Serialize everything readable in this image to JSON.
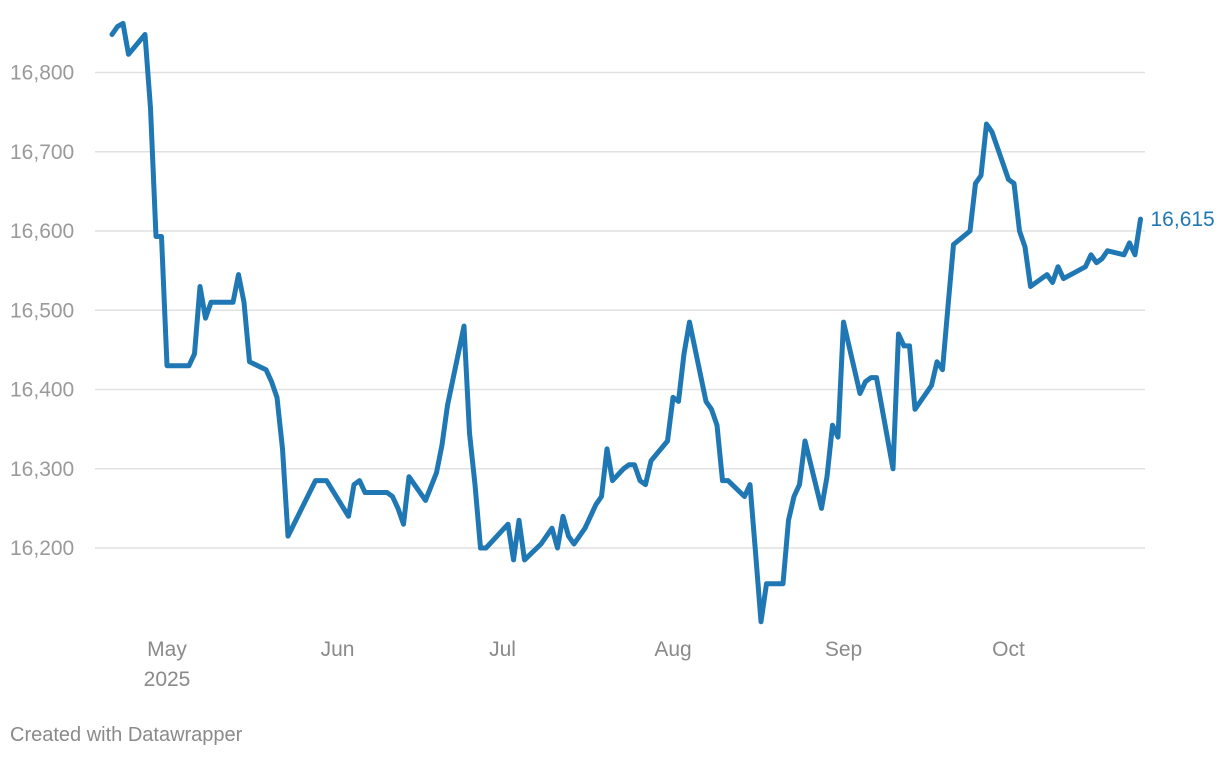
{
  "chart_data": {
    "type": "line",
    "color": "#1f77b4",
    "grid": true,
    "y_ticks": [
      16200,
      16300,
      16400,
      16500,
      16600,
      16700,
      16800
    ],
    "y_tick_labels": [
      "16,200",
      "16,300",
      "16,400",
      "16,500",
      "16,600",
      "16,700",
      "16,800"
    ],
    "x_ticks": [
      {
        "date": "2025-05-01",
        "label": "May",
        "sublabel": "2025"
      },
      {
        "date": "2025-06-01",
        "label": "Jun"
      },
      {
        "date": "2025-07-01",
        "label": "Jul"
      },
      {
        "date": "2025-08-01",
        "label": "Aug"
      },
      {
        "date": "2025-09-01",
        "label": "Sep"
      },
      {
        "date": "2025-10-01",
        "label": "Oct"
      }
    ],
    "end_label": "16,615",
    "series": [
      {
        "points": [
          [
            "2025-04-21",
            16848
          ],
          [
            "2025-04-22",
            16858
          ],
          [
            "2025-04-23",
            16862
          ],
          [
            "2025-04-24",
            16823
          ],
          [
            "2025-04-27",
            16848
          ],
          [
            "2025-04-28",
            16755
          ],
          [
            "2025-04-29",
            16593
          ],
          [
            "2025-04-30",
            16593
          ],
          [
            "2025-05-01",
            16430
          ],
          [
            "2025-05-05",
            16430
          ],
          [
            "2025-05-06",
            16445
          ],
          [
            "2025-05-07",
            16530
          ],
          [
            "2025-05-08",
            16490
          ],
          [
            "2025-05-09",
            16510
          ],
          [
            "2025-05-13",
            16510
          ],
          [
            "2025-05-14",
            16545
          ],
          [
            "2025-05-15",
            16510
          ],
          [
            "2025-05-16",
            16435
          ],
          [
            "2025-05-19",
            16425
          ],
          [
            "2025-05-20",
            16410
          ],
          [
            "2025-05-21",
            16390
          ],
          [
            "2025-05-22",
            16325
          ],
          [
            "2025-05-23",
            16215
          ],
          [
            "2025-05-28",
            16285
          ],
          [
            "2025-05-30",
            16285
          ],
          [
            "2025-06-03",
            16240
          ],
          [
            "2025-06-04",
            16280
          ],
          [
            "2025-06-05",
            16285
          ],
          [
            "2025-06-06",
            16270
          ],
          [
            "2025-06-10",
            16270
          ],
          [
            "2025-06-11",
            16265
          ],
          [
            "2025-06-12",
            16250
          ],
          [
            "2025-06-13",
            16230
          ],
          [
            "2025-06-14",
            16290
          ],
          [
            "2025-06-17",
            16260
          ],
          [
            "2025-06-19",
            16295
          ],
          [
            "2025-06-20",
            16330
          ],
          [
            "2025-06-21",
            16380
          ],
          [
            "2025-06-24",
            16480
          ],
          [
            "2025-06-25",
            16345
          ],
          [
            "2025-06-26",
            16280
          ],
          [
            "2025-06-27",
            16200
          ],
          [
            "2025-06-28",
            16200
          ],
          [
            "2025-07-02",
            16230
          ],
          [
            "2025-07-03",
            16185
          ],
          [
            "2025-07-04",
            16235
          ],
          [
            "2025-07-05",
            16185
          ],
          [
            "2025-07-08",
            16205
          ],
          [
            "2025-07-10",
            16225
          ],
          [
            "2025-07-11",
            16200
          ],
          [
            "2025-07-12",
            16240
          ],
          [
            "2025-07-13",
            16215
          ],
          [
            "2025-07-14",
            16205
          ],
          [
            "2025-07-16",
            16225
          ],
          [
            "2025-07-17",
            16240
          ],
          [
            "2025-07-18",
            16255
          ],
          [
            "2025-07-19",
            16265
          ],
          [
            "2025-07-20",
            16325
          ],
          [
            "2025-07-21",
            16285
          ],
          [
            "2025-07-23",
            16300
          ],
          [
            "2025-07-24",
            16305
          ],
          [
            "2025-07-25",
            16305
          ],
          [
            "2025-07-26",
            16285
          ],
          [
            "2025-07-27",
            16280
          ],
          [
            "2025-07-28",
            16310
          ],
          [
            "2025-07-31",
            16335
          ],
          [
            "2025-08-01",
            16390
          ],
          [
            "2025-08-02",
            16385
          ],
          [
            "2025-08-03",
            16445
          ],
          [
            "2025-08-04",
            16485
          ],
          [
            "2025-08-07",
            16385
          ],
          [
            "2025-08-08",
            16375
          ],
          [
            "2025-08-09",
            16355
          ],
          [
            "2025-08-10",
            16285
          ],
          [
            "2025-08-11",
            16285
          ],
          [
            "2025-08-14",
            16265
          ],
          [
            "2025-08-15",
            16280
          ],
          [
            "2025-08-16",
            16195
          ],
          [
            "2025-08-17",
            16107
          ],
          [
            "2025-08-18",
            16155
          ],
          [
            "2025-08-20",
            16155
          ],
          [
            "2025-08-21",
            16155
          ],
          [
            "2025-08-22",
            16235
          ],
          [
            "2025-08-23",
            16265
          ],
          [
            "2025-08-24",
            16280
          ],
          [
            "2025-08-25",
            16335
          ],
          [
            "2025-08-28",
            16250
          ],
          [
            "2025-08-29",
            16290
          ],
          [
            "2025-08-30",
            16355
          ],
          [
            "2025-08-31",
            16340
          ],
          [
            "2025-09-01",
            16485
          ],
          [
            "2025-09-04",
            16395
          ],
          [
            "2025-09-05",
            16410
          ],
          [
            "2025-09-06",
            16415
          ],
          [
            "2025-09-07",
            16415
          ],
          [
            "2025-09-10",
            16300
          ],
          [
            "2025-09-11",
            16470
          ],
          [
            "2025-09-12",
            16455
          ],
          [
            "2025-09-13",
            16455
          ],
          [
            "2025-09-14",
            16375
          ],
          [
            "2025-09-17",
            16405
          ],
          [
            "2025-09-18",
            16435
          ],
          [
            "2025-09-19",
            16425
          ],
          [
            "2025-09-20",
            16505
          ],
          [
            "2025-09-21",
            16583
          ],
          [
            "2025-09-24",
            16600
          ],
          [
            "2025-09-25",
            16660
          ],
          [
            "2025-09-26",
            16670
          ],
          [
            "2025-09-27",
            16735
          ],
          [
            "2025-09-28",
            16725
          ],
          [
            "2025-10-01",
            16665
          ],
          [
            "2025-10-02",
            16660
          ],
          [
            "2025-10-03",
            16600
          ],
          [
            "2025-10-04",
            16580
          ],
          [
            "2025-10-05",
            16530
          ],
          [
            "2025-10-08",
            16545
          ],
          [
            "2025-10-09",
            16535
          ],
          [
            "2025-10-10",
            16555
          ],
          [
            "2025-10-11",
            16540
          ],
          [
            "2025-10-15",
            16555
          ],
          [
            "2025-10-16",
            16570
          ],
          [
            "2025-10-17",
            16560
          ],
          [
            "2025-10-18",
            16565
          ],
          [
            "2025-10-19",
            16575
          ],
          [
            "2025-10-22",
            16570
          ],
          [
            "2025-10-23",
            16585
          ],
          [
            "2025-10-24",
            16570
          ],
          [
            "2025-10-25",
            16615
          ]
        ]
      }
    ]
  },
  "footer": {
    "credit": "Created with Datawrapper"
  }
}
